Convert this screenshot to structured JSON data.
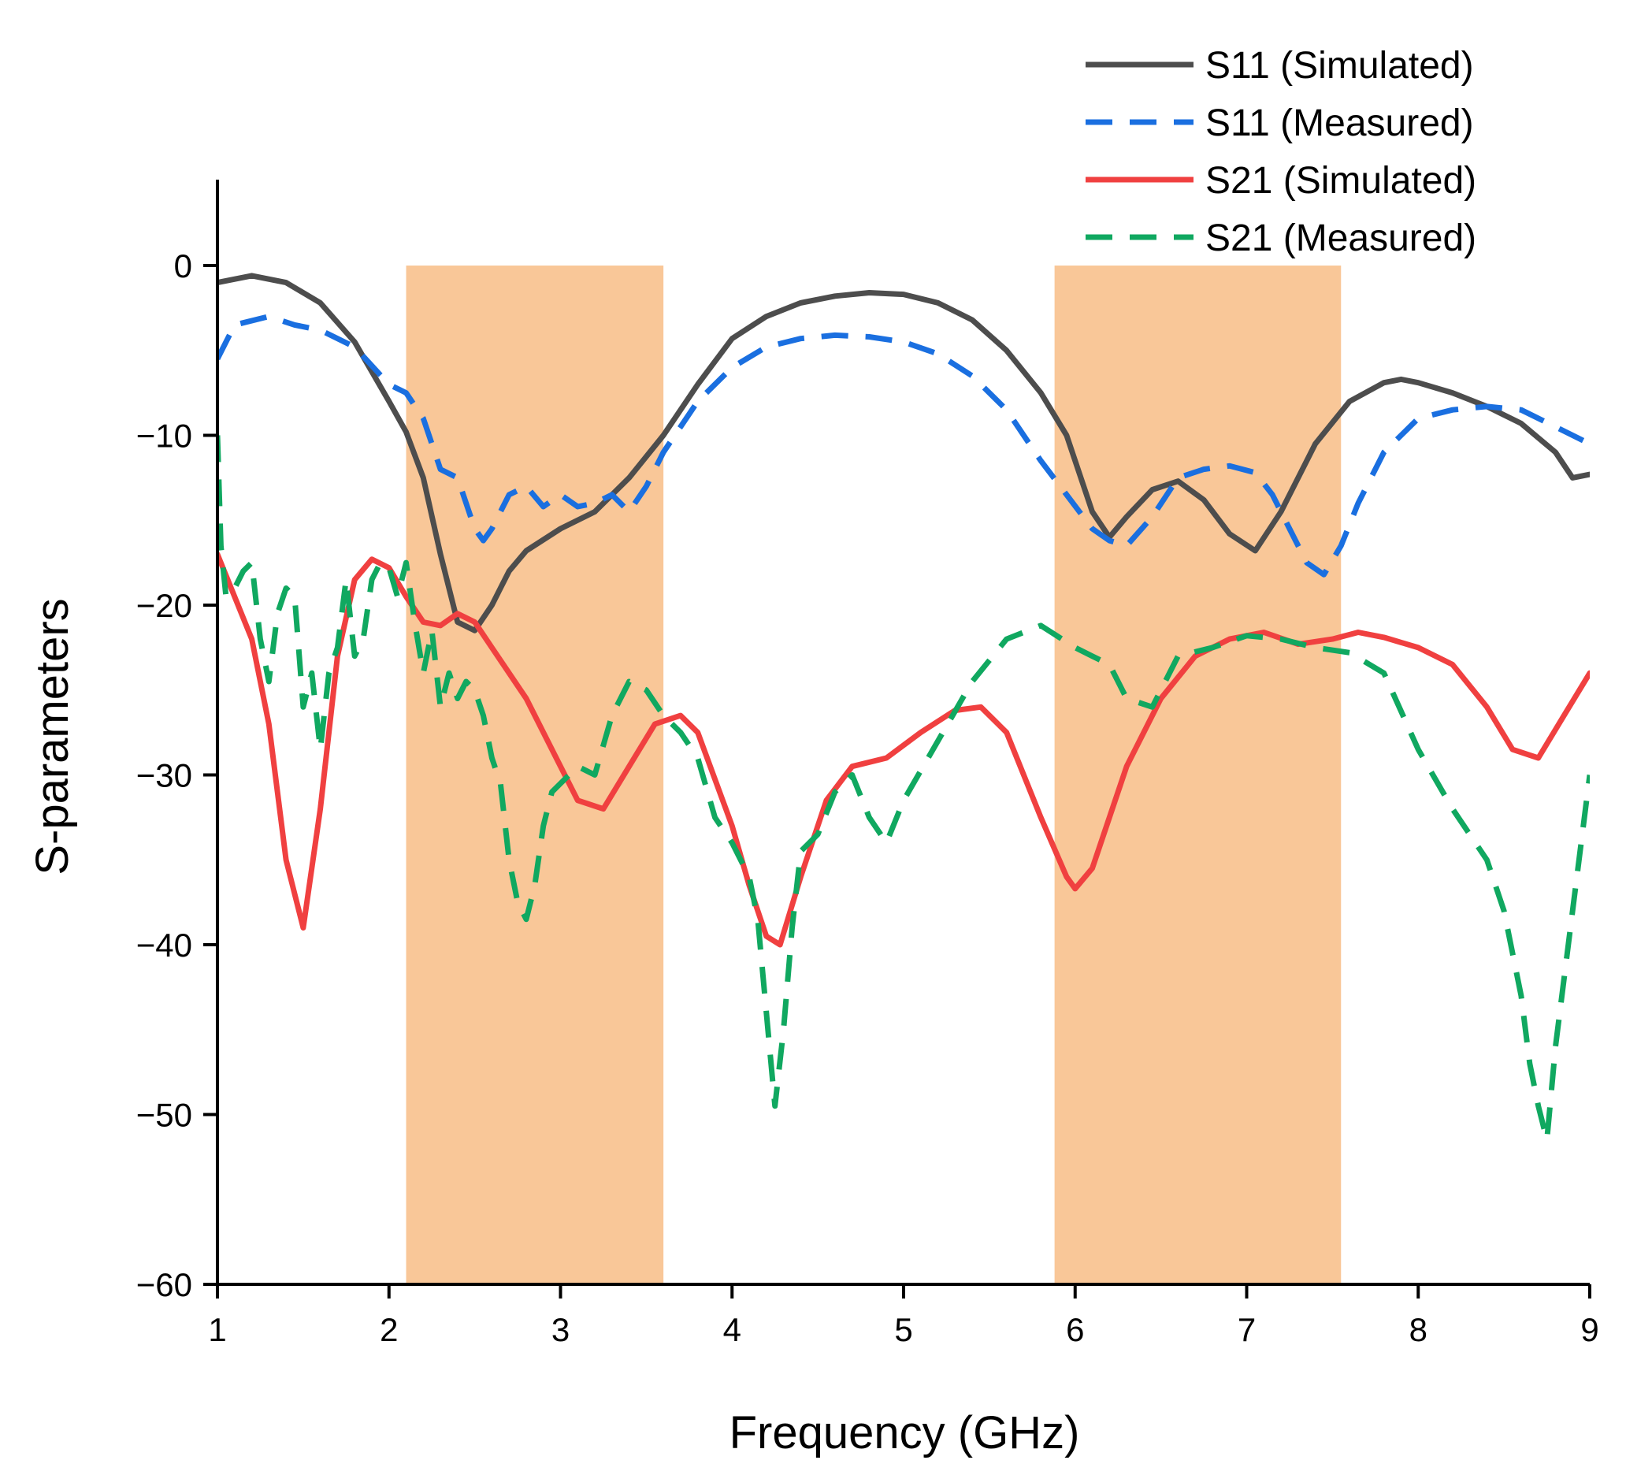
{
  "chart_data": {
    "type": "line",
    "xlabel": "Frequency (GHz)",
    "ylabel": "S-parameters",
    "xlim": [
      1,
      9
    ],
    "ylim": [
      -60,
      5
    ],
    "xticks": [
      1,
      2,
      3,
      4,
      5,
      6,
      7,
      8,
      9
    ],
    "yticks": [
      0,
      -10,
      -20,
      -30,
      -40,
      -50,
      -60
    ],
    "xtick_labels": [
      "1",
      "2",
      "3",
      "4",
      "5",
      "6",
      "7",
      "8",
      "9"
    ],
    "ytick_labels": [
      "0",
      "−10",
      "−20",
      "−30",
      "−40",
      "−50",
      "−60"
    ],
    "grid": false,
    "legend_position": "top-right",
    "shaded_bands": [
      {
        "x": [
          2.1,
          3.6
        ],
        "y": [
          -60,
          0
        ],
        "color": "#F9C798"
      },
      {
        "x": [
          5.88,
          7.55
        ],
        "y": [
          -60,
          0
        ],
        "color": "#F9C798"
      }
    ],
    "series": [
      {
        "name": "S11 (Simulated)",
        "color": "#4D4D4D",
        "dash": "solid",
        "x": [
          1.0,
          1.2,
          1.4,
          1.6,
          1.8,
          2.0,
          2.1,
          2.2,
          2.3,
          2.4,
          2.5,
          2.6,
          2.7,
          2.8,
          3.0,
          3.2,
          3.4,
          3.6,
          3.8,
          4.0,
          4.2,
          4.4,
          4.6,
          4.8,
          5.0,
          5.2,
          5.4,
          5.6,
          5.8,
          5.95,
          6.1,
          6.2,
          6.3,
          6.45,
          6.6,
          6.75,
          6.9,
          7.05,
          7.2,
          7.4,
          7.6,
          7.8,
          7.9,
          8.0,
          8.2,
          8.4,
          8.6,
          8.8,
          8.9,
          9.0
        ],
        "values": [
          -1.0,
          -0.6,
          -1.0,
          -2.2,
          -4.5,
          -8.0,
          -9.8,
          -12.5,
          -17.0,
          -21.0,
          -21.5,
          -20.0,
          -18.0,
          -16.8,
          -15.5,
          -14.5,
          -12.5,
          -10.0,
          -7.0,
          -4.3,
          -3.0,
          -2.2,
          -1.8,
          -1.6,
          -1.7,
          -2.2,
          -3.2,
          -5.0,
          -7.5,
          -10.0,
          -14.5,
          -16.0,
          -14.8,
          -13.2,
          -12.7,
          -13.8,
          -15.8,
          -16.8,
          -14.5,
          -10.5,
          -8.0,
          -6.9,
          -6.7,
          -6.9,
          -7.5,
          -8.3,
          -9.3,
          -11.0,
          -12.5,
          -12.3
        ]
      },
      {
        "name": "S11 (Measured)",
        "color": "#1A6FE0",
        "dash": "dashed",
        "x": [
          1.0,
          1.1,
          1.3,
          1.45,
          1.6,
          1.8,
          2.0,
          2.1,
          2.2,
          2.3,
          2.4,
          2.5,
          2.55,
          2.6,
          2.7,
          2.8,
          2.9,
          3.0,
          3.1,
          3.2,
          3.3,
          3.4,
          3.5,
          3.6,
          3.8,
          4.0,
          4.2,
          4.4,
          4.6,
          4.8,
          5.0,
          5.2,
          5.4,
          5.6,
          5.8,
          5.95,
          6.1,
          6.2,
          6.3,
          6.45,
          6.6,
          6.75,
          6.9,
          7.05,
          7.15,
          7.25,
          7.35,
          7.45,
          7.55,
          7.65,
          7.8,
          8.0,
          8.2,
          8.4,
          8.6,
          8.8,
          9.0
        ],
        "values": [
          -5.5,
          -3.5,
          -3.0,
          -3.5,
          -3.8,
          -4.8,
          -7.0,
          -7.5,
          -9.0,
          -12.0,
          -12.5,
          -15.5,
          -16.2,
          -15.5,
          -13.5,
          -13.0,
          -14.2,
          -13.5,
          -14.2,
          -14.0,
          -13.5,
          -14.5,
          -13.0,
          -11.0,
          -8.0,
          -6.0,
          -4.8,
          -4.3,
          -4.1,
          -4.2,
          -4.5,
          -5.2,
          -6.5,
          -8.5,
          -11.5,
          -13.5,
          -15.5,
          -16.2,
          -16.5,
          -14.8,
          -12.5,
          -12.0,
          -11.8,
          -12.2,
          -13.5,
          -15.5,
          -17.5,
          -18.2,
          -16.5,
          -14.0,
          -11.0,
          -9.0,
          -8.5,
          -8.3,
          -8.5,
          -9.5,
          -10.5
        ]
      },
      {
        "name": "S21 (Simulated)",
        "color": "#F04040",
        "dash": "solid",
        "x": [
          1.0,
          1.2,
          1.3,
          1.4,
          1.5,
          1.6,
          1.7,
          1.8,
          1.9,
          2.0,
          2.1,
          2.2,
          2.3,
          2.4,
          2.5,
          2.6,
          2.8,
          3.0,
          3.1,
          3.25,
          3.4,
          3.55,
          3.7,
          3.8,
          4.0,
          4.1,
          4.2,
          4.28,
          4.4,
          4.55,
          4.7,
          4.9,
          5.1,
          5.3,
          5.45,
          5.6,
          5.8,
          5.95,
          6.0,
          6.1,
          6.3,
          6.5,
          6.7,
          6.9,
          7.1,
          7.3,
          7.5,
          7.65,
          7.8,
          8.0,
          8.2,
          8.4,
          8.55,
          8.7,
          8.85,
          9.0
        ],
        "values": [
          -17.0,
          -22.0,
          -27.0,
          -35.0,
          -39.0,
          -32.0,
          -23.0,
          -18.5,
          -17.3,
          -17.8,
          -19.5,
          -21.0,
          -21.2,
          -20.5,
          -21.0,
          -22.5,
          -25.5,
          -29.5,
          -31.5,
          -32.0,
          -29.5,
          -27.0,
          -26.5,
          -27.5,
          -33.0,
          -36.5,
          -39.5,
          -40.0,
          -36.0,
          -31.5,
          -29.5,
          -29.0,
          -27.5,
          -26.2,
          -26.0,
          -27.5,
          -32.5,
          -36.0,
          -36.7,
          -35.5,
          -29.5,
          -25.5,
          -23.0,
          -22.0,
          -21.6,
          -22.3,
          -22.0,
          -21.6,
          -21.9,
          -22.5,
          -23.5,
          -26.0,
          -28.5,
          -29.0,
          -26.5,
          -24.0
        ]
      },
      {
        "name": "S21 (Measured)",
        "color": "#10A860",
        "dash": "dashed",
        "x": [
          1.0,
          1.02,
          1.05,
          1.1,
          1.15,
          1.2,
          1.25,
          1.3,
          1.35,
          1.4,
          1.45,
          1.5,
          1.55,
          1.6,
          1.65,
          1.7,
          1.75,
          1.8,
          1.85,
          1.9,
          1.95,
          2.0,
          2.05,
          2.1,
          2.15,
          2.2,
          2.25,
          2.3,
          2.35,
          2.4,
          2.45,
          2.5,
          2.55,
          2.6,
          2.65,
          2.7,
          2.75,
          2.8,
          2.85,
          2.9,
          2.95,
          3.0,
          3.1,
          3.2,
          3.3,
          3.4,
          3.5,
          3.6,
          3.7,
          3.8,
          3.9,
          4.0,
          4.1,
          4.15,
          4.2,
          4.25,
          4.3,
          4.35,
          4.4,
          4.5,
          4.6,
          4.7,
          4.8,
          4.9,
          5.0,
          5.2,
          5.4,
          5.6,
          5.8,
          6.0,
          6.1,
          6.2,
          6.3,
          6.45,
          6.6,
          6.8,
          7.0,
          7.2,
          7.4,
          7.6,
          7.8,
          8.0,
          8.2,
          8.4,
          8.5,
          8.6,
          8.65,
          8.7,
          8.75,
          8.8,
          8.9,
          9.0
        ],
        "values": [
          -10.0,
          -16.5,
          -19.5,
          -19.0,
          -18.0,
          -17.5,
          -22.0,
          -24.5,
          -20.5,
          -19.0,
          -19.5,
          -26.0,
          -24.0,
          -28.5,
          -24.0,
          -22.5,
          -18.5,
          -23.0,
          -22.0,
          -18.5,
          -17.5,
          -17.8,
          -19.5,
          -17.5,
          -21.0,
          -24.0,
          -21.5,
          -26.0,
          -24.0,
          -25.5,
          -24.5,
          -25.0,
          -26.5,
          -29.0,
          -30.5,
          -35.0,
          -37.5,
          -38.5,
          -36.5,
          -33.0,
          -31.0,
          -30.5,
          -29.5,
          -30.0,
          -26.5,
          -24.5,
          -25.0,
          -26.5,
          -27.5,
          -29.0,
          -32.5,
          -34.0,
          -36.0,
          -38.5,
          -44.0,
          -49.5,
          -45.0,
          -39.0,
          -34.5,
          -33.5,
          -31.0,
          -30.0,
          -32.5,
          -34.0,
          -31.5,
          -28.0,
          -24.5,
          -22.0,
          -21.2,
          -22.5,
          -23.0,
          -23.5,
          -25.5,
          -26.0,
          -23.0,
          -22.5,
          -21.8,
          -22.0,
          -22.5,
          -22.8,
          -24.0,
          -28.5,
          -32.0,
          -35.0,
          -38.0,
          -43.0,
          -47.0,
          -49.5,
          -51.5,
          -46.0,
          -38.0,
          -30.0
        ]
      }
    ]
  }
}
